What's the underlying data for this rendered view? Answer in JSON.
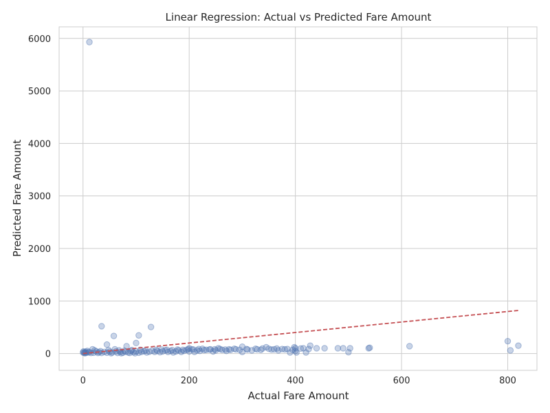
{
  "chart_data": {
    "type": "scatter",
    "title": "Linear Regression: Actual vs Predicted Fare Amount",
    "xlabel": "Actual Fare Amount",
    "ylabel": "Predicted Fare Amount",
    "xlim": [
      -45,
      855
    ],
    "ylim": [
      -320,
      6220
    ],
    "x_ticks": [
      0,
      200,
      400,
      600,
      800
    ],
    "y_ticks": [
      0,
      1000,
      2000,
      3000,
      4000,
      5000,
      6000
    ],
    "x_tick_labels": [
      "0",
      "200",
      "400",
      "600",
      "800"
    ],
    "y_tick_labels": [
      "0",
      "1000",
      "2000",
      "3000",
      "4000",
      "5000",
      "6000"
    ],
    "grid": true,
    "legend": "none",
    "colors": {
      "points": "#4c72b0",
      "fit_line": "#c44e52",
      "grid": "#cccccc",
      "spine": "#cccccc"
    },
    "reference_line": {
      "style": "dashed",
      "points": [
        [
          0,
          0
        ],
        [
          820,
          820
        ]
      ]
    },
    "series": [
      {
        "points": [
          [
            12,
            5930
          ],
          [
            35,
            520
          ],
          [
            128,
            505
          ],
          [
            58,
            335
          ],
          [
            105,
            345
          ],
          [
            45,
            170
          ],
          [
            100,
            200
          ],
          [
            82,
            140
          ],
          [
            800,
            235
          ],
          [
            805,
            60
          ],
          [
            820,
            150
          ],
          [
            615,
            140
          ],
          [
            540,
            110
          ],
          [
            538,
            100
          ],
          [
            500,
            25
          ],
          [
            503,
            100
          ],
          [
            490,
            100
          ],
          [
            480,
            100
          ],
          [
            455,
            100
          ],
          [
            440,
            100
          ],
          [
            428,
            150
          ],
          [
            420,
            20
          ],
          [
            415,
            100
          ],
          [
            402,
            20
          ],
          [
            400,
            100
          ],
          [
            400,
            50
          ],
          [
            398,
            120
          ],
          [
            395,
            70
          ],
          [
            390,
            20
          ],
          [
            380,
            80
          ],
          [
            375,
            85
          ],
          [
            368,
            60
          ],
          [
            360,
            80
          ],
          [
            350,
            90
          ],
          [
            345,
            120
          ],
          [
            335,
            70
          ],
          [
            325,
            90
          ],
          [
            318,
            60
          ],
          [
            310,
            75
          ],
          [
            300,
            130
          ],
          [
            300,
            30
          ],
          [
            295,
            70
          ],
          [
            285,
            90
          ],
          [
            275,
            80
          ],
          [
            270,
            50
          ],
          [
            262,
            70
          ],
          [
            255,
            100
          ],
          [
            250,
            60
          ],
          [
            245,
            40
          ],
          [
            240,
            80
          ],
          [
            232,
            70
          ],
          [
            225,
            90
          ],
          [
            220,
            50
          ],
          [
            215,
            60
          ],
          [
            210,
            30
          ],
          [
            205,
            80
          ],
          [
            200,
            100
          ],
          [
            200,
            40
          ],
          [
            195,
            70
          ],
          [
            190,
            50
          ],
          [
            185,
            30
          ],
          [
            180,
            60
          ],
          [
            175,
            40
          ],
          [
            170,
            20
          ],
          [
            165,
            50
          ],
          [
            160,
            30
          ],
          [
            155,
            60
          ],
          [
            150,
            40
          ],
          [
            145,
            25
          ],
          [
            140,
            50
          ],
          [
            135,
            30
          ],
          [
            130,
            55
          ],
          [
            125,
            35
          ],
          [
            120,
            20
          ],
          [
            115,
            45
          ],
          [
            110,
            30
          ],
          [
            105,
            15
          ],
          [
            100,
            40
          ],
          [
            95,
            25
          ],
          [
            90,
            50
          ],
          [
            85,
            20
          ],
          [
            80,
            35
          ],
          [
            75,
            15
          ],
          [
            70,
            30
          ],
          [
            65,
            10
          ],
          [
            60,
            80
          ],
          [
            55,
            20
          ],
          [
            50,
            35
          ],
          [
            45,
            15
          ],
          [
            40,
            30
          ],
          [
            35,
            10
          ],
          [
            30,
            25
          ],
          [
            25,
            40
          ],
          [
            20,
            15
          ],
          [
            18,
            80
          ],
          [
            15,
            10
          ],
          [
            12,
            30
          ],
          [
            10,
            20
          ],
          [
            8,
            50
          ],
          [
            6,
            15
          ],
          [
            5,
            35
          ],
          [
            4,
            5
          ],
          [
            3,
            25
          ],
          [
            2,
            10
          ],
          [
            1,
            40
          ],
          [
            0,
            20
          ],
          [
            22,
            60
          ],
          [
            28,
            10
          ],
          [
            33,
            45
          ],
          [
            48,
            65
          ],
          [
            53,
            5
          ],
          [
            62,
            40
          ],
          [
            68,
            60
          ],
          [
            72,
            5
          ],
          [
            78,
            55
          ],
          [
            88,
            10
          ],
          [
            92,
            65
          ],
          [
            98,
            5
          ],
          [
            108,
            70
          ],
          [
            118,
            60
          ],
          [
            138,
            70
          ],
          [
            148,
            75
          ],
          [
            158,
            70
          ],
          [
            168,
            65
          ],
          [
            178,
            75
          ],
          [
            188,
            70
          ],
          [
            198,
            80
          ],
          [
            208,
            75
          ],
          [
            218,
            85
          ],
          [
            228,
            65
          ],
          [
            238,
            75
          ],
          [
            248,
            80
          ],
          [
            258,
            85
          ],
          [
            268,
            75
          ],
          [
            278,
            70
          ],
          [
            288,
            80
          ],
          [
            308,
            85
          ],
          [
            328,
            80
          ],
          [
            338,
            95
          ],
          [
            355,
            75
          ],
          [
            365,
            95
          ],
          [
            385,
            85
          ],
          [
            410,
            95
          ],
          [
            425,
            85
          ]
        ]
      }
    ]
  }
}
